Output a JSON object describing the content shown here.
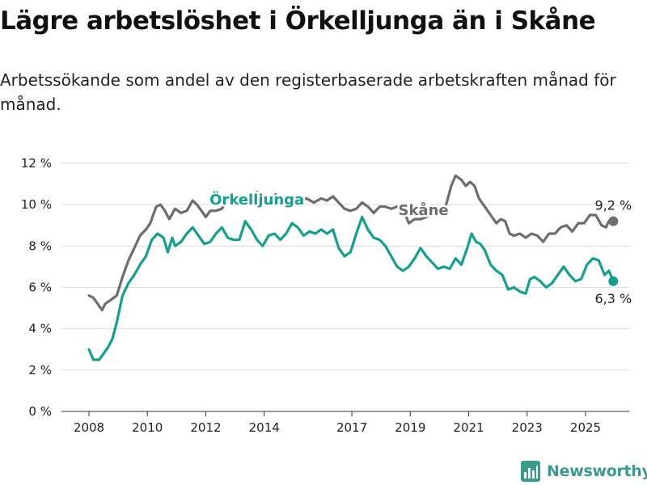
{
  "title": "Lägre arbetslöshet i Örkelljunga än i Skåne",
  "subtitle": "Arbetssökande som andel av den registerbaserade arbetskraften månad för månad.",
  "logo": {
    "text": "Newsworthy",
    "icon": "newsworthy-chart-icon",
    "color": "#3a9a8c"
  },
  "chart_data": {
    "type": "line",
    "title": "Lägre arbetslöshet i Örkelljunga än i Skåne",
    "subtitle": "Arbetssökande som andel av den registerbaserade arbetskraften månad för månad.",
    "ylim": [
      0,
      12
    ],
    "yticks": [
      0,
      2,
      4,
      6,
      8,
      10,
      12
    ],
    "ytick_labels": [
      "0 %",
      "2 %",
      "4 %",
      "6 %",
      "8 %",
      "10 %",
      "12 %"
    ],
    "xlim": [
      2008,
      2026.5
    ],
    "xticks": [
      2008,
      2010,
      2012,
      2014,
      2017,
      2019,
      2021,
      2023,
      2025
    ],
    "xtick_labels": [
      "2008",
      "2010",
      "2012",
      "2014",
      "2017",
      "2019",
      "2021",
      "2023",
      "2025"
    ],
    "grid": true,
    "legend": "inline labels",
    "series": [
      {
        "name": "Skåne",
        "color": "#6f6c70",
        "label_at": [
          2019.45,
          9.5
        ],
        "end_label": "9,2 %",
        "points": [
          [
            2008.0,
            5.6
          ],
          [
            2008.15,
            5.5
          ],
          [
            2008.35,
            5.1
          ],
          [
            2008.45,
            4.9
          ],
          [
            2008.55,
            5.2
          ],
          [
            2008.75,
            5.4
          ],
          [
            2008.95,
            5.6
          ],
          [
            2009.15,
            6.5
          ],
          [
            2009.35,
            7.3
          ],
          [
            2009.55,
            7.9
          ],
          [
            2009.75,
            8.5
          ],
          [
            2009.95,
            8.8
          ],
          [
            2010.1,
            9.1
          ],
          [
            2010.3,
            9.9
          ],
          [
            2010.45,
            10.0
          ],
          [
            2010.6,
            9.7
          ],
          [
            2010.75,
            9.3
          ],
          [
            2010.95,
            9.8
          ],
          [
            2011.15,
            9.6
          ],
          [
            2011.35,
            9.7
          ],
          [
            2011.55,
            10.2
          ],
          [
            2011.7,
            10.0
          ],
          [
            2011.85,
            9.7
          ],
          [
            2012.0,
            9.4
          ],
          [
            2012.15,
            9.7
          ],
          [
            2012.35,
            9.7
          ],
          [
            2012.55,
            9.8
          ],
          [
            2012.75,
            10.3
          ],
          [
            2012.95,
            10.0
          ],
          [
            2013.15,
            10.3
          ],
          [
            2013.35,
            10.1
          ],
          [
            2013.55,
            10.3
          ],
          [
            2013.75,
            10.6
          ],
          [
            2013.95,
            10.5
          ],
          [
            2014.15,
            10.3
          ],
          [
            2014.4,
            10.5
          ],
          [
            2014.6,
            10.1
          ],
          [
            2014.8,
            10.2
          ],
          [
            2015.0,
            10.3
          ],
          [
            2015.25,
            10.2
          ],
          [
            2015.45,
            10.3
          ],
          [
            2015.7,
            10.1
          ],
          [
            2015.95,
            10.3
          ],
          [
            2016.15,
            10.2
          ],
          [
            2016.35,
            10.4
          ],
          [
            2016.55,
            10.1
          ],
          [
            2016.75,
            9.8
          ],
          [
            2016.95,
            9.7
          ],
          [
            2017.15,
            9.8
          ],
          [
            2017.35,
            10.1
          ],
          [
            2017.55,
            9.9
          ],
          [
            2017.75,
            9.6
          ],
          [
            2017.95,
            9.9
          ],
          [
            2018.15,
            9.9
          ],
          [
            2018.35,
            9.8
          ],
          [
            2018.55,
            9.9
          ],
          [
            2018.75,
            9.8
          ],
          [
            2018.95,
            9.1
          ],
          [
            2019.15,
            9.3
          ],
          [
            2019.35,
            9.3
          ],
          [
            2019.55,
            9.4
          ],
          [
            2019.75,
            9.6
          ],
          [
            2019.95,
            9.8
          ],
          [
            2020.15,
            9.7
          ],
          [
            2020.25,
            10.1
          ],
          [
            2020.4,
            10.9
          ],
          [
            2020.55,
            11.4
          ],
          [
            2020.75,
            11.2
          ],
          [
            2020.9,
            10.9
          ],
          [
            2021.05,
            11.1
          ],
          [
            2021.2,
            10.9
          ],
          [
            2021.35,
            10.3
          ],
          [
            2021.55,
            9.9
          ],
          [
            2021.75,
            9.5
          ],
          [
            2021.95,
            9.1
          ],
          [
            2022.1,
            9.3
          ],
          [
            2022.25,
            9.2
          ],
          [
            2022.4,
            8.6
          ],
          [
            2022.55,
            8.5
          ],
          [
            2022.75,
            8.6
          ],
          [
            2022.95,
            8.4
          ],
          [
            2023.15,
            8.6
          ],
          [
            2023.35,
            8.5
          ],
          [
            2023.55,
            8.2
          ],
          [
            2023.75,
            8.6
          ],
          [
            2023.95,
            8.6
          ],
          [
            2024.15,
            8.9
          ],
          [
            2024.35,
            9.0
          ],
          [
            2024.55,
            8.7
          ],
          [
            2024.75,
            9.1
          ],
          [
            2024.95,
            9.1
          ],
          [
            2025.15,
            9.5
          ],
          [
            2025.35,
            9.5
          ],
          [
            2025.55,
            9.0
          ],
          [
            2025.7,
            8.9
          ],
          [
            2025.8,
            9.2
          ],
          [
            2025.95,
            9.2
          ]
        ]
      },
      {
        "name": "Örkelljunga",
        "color": "#14a08c",
        "label_at": [
          2013.75,
          10.0
        ],
        "end_label": "6,3 %",
        "points": [
          [
            2008.0,
            3.0
          ],
          [
            2008.15,
            2.5
          ],
          [
            2008.35,
            2.5
          ],
          [
            2008.5,
            2.8
          ],
          [
            2008.65,
            3.1
          ],
          [
            2008.8,
            3.5
          ],
          [
            2008.95,
            4.3
          ],
          [
            2009.15,
            5.6
          ],
          [
            2009.35,
            6.2
          ],
          [
            2009.55,
            6.6
          ],
          [
            2009.75,
            7.1
          ],
          [
            2009.95,
            7.5
          ],
          [
            2010.15,
            8.3
          ],
          [
            2010.35,
            8.6
          ],
          [
            2010.55,
            8.4
          ],
          [
            2010.7,
            7.7
          ],
          [
            2010.85,
            8.4
          ],
          [
            2010.95,
            8.0
          ],
          [
            2011.15,
            8.2
          ],
          [
            2011.35,
            8.6
          ],
          [
            2011.55,
            8.9
          ],
          [
            2011.75,
            8.5
          ],
          [
            2011.95,
            8.1
          ],
          [
            2012.15,
            8.2
          ],
          [
            2012.35,
            8.6
          ],
          [
            2012.55,
            8.9
          ],
          [
            2012.75,
            8.4
          ],
          [
            2012.95,
            8.3
          ],
          [
            2013.15,
            8.3
          ],
          [
            2013.35,
            9.2
          ],
          [
            2013.55,
            8.8
          ],
          [
            2013.75,
            8.3
          ],
          [
            2013.95,
            8.0
          ],
          [
            2014.15,
            8.5
          ],
          [
            2014.35,
            8.6
          ],
          [
            2014.55,
            8.3
          ],
          [
            2014.75,
            8.6
          ],
          [
            2014.95,
            9.1
          ],
          [
            2015.15,
            8.9
          ],
          [
            2015.35,
            8.5
          ],
          [
            2015.55,
            8.7
          ],
          [
            2015.75,
            8.6
          ],
          [
            2015.95,
            8.8
          ],
          [
            2016.15,
            8.6
          ],
          [
            2016.35,
            8.8
          ],
          [
            2016.55,
            7.9
          ],
          [
            2016.75,
            7.5
          ],
          [
            2016.95,
            7.7
          ],
          [
            2017.15,
            8.6
          ],
          [
            2017.35,
            9.4
          ],
          [
            2017.55,
            8.8
          ],
          [
            2017.75,
            8.4
          ],
          [
            2017.95,
            8.3
          ],
          [
            2018.15,
            8.0
          ],
          [
            2018.35,
            7.5
          ],
          [
            2018.55,
            7.0
          ],
          [
            2018.75,
            6.8
          ],
          [
            2018.95,
            7.0
          ],
          [
            2019.15,
            7.4
          ],
          [
            2019.35,
            7.9
          ],
          [
            2019.55,
            7.5
          ],
          [
            2019.75,
            7.2
          ],
          [
            2019.95,
            6.9
          ],
          [
            2020.15,
            7.0
          ],
          [
            2020.35,
            6.9
          ],
          [
            2020.55,
            7.4
          ],
          [
            2020.75,
            7.1
          ],
          [
            2020.95,
            7.9
          ],
          [
            2021.1,
            8.6
          ],
          [
            2021.25,
            8.2
          ],
          [
            2021.4,
            8.1
          ],
          [
            2021.55,
            7.8
          ],
          [
            2021.75,
            7.1
          ],
          [
            2021.95,
            6.8
          ],
          [
            2022.15,
            6.6
          ],
          [
            2022.35,
            5.9
          ],
          [
            2022.55,
            6.0
          ],
          [
            2022.75,
            5.8
          ],
          [
            2022.95,
            5.7
          ],
          [
            2023.1,
            6.4
          ],
          [
            2023.25,
            6.5
          ],
          [
            2023.45,
            6.3
          ],
          [
            2023.65,
            6.0
          ],
          [
            2023.85,
            6.2
          ],
          [
            2024.05,
            6.6
          ],
          [
            2024.25,
            7.0
          ],
          [
            2024.45,
            6.6
          ],
          [
            2024.65,
            6.3
          ],
          [
            2024.85,
            6.4
          ],
          [
            2025.05,
            7.1
          ],
          [
            2025.25,
            7.4
          ],
          [
            2025.45,
            7.3
          ],
          [
            2025.65,
            6.6
          ],
          [
            2025.8,
            6.8
          ],
          [
            2025.95,
            6.3
          ]
        ]
      }
    ]
  }
}
